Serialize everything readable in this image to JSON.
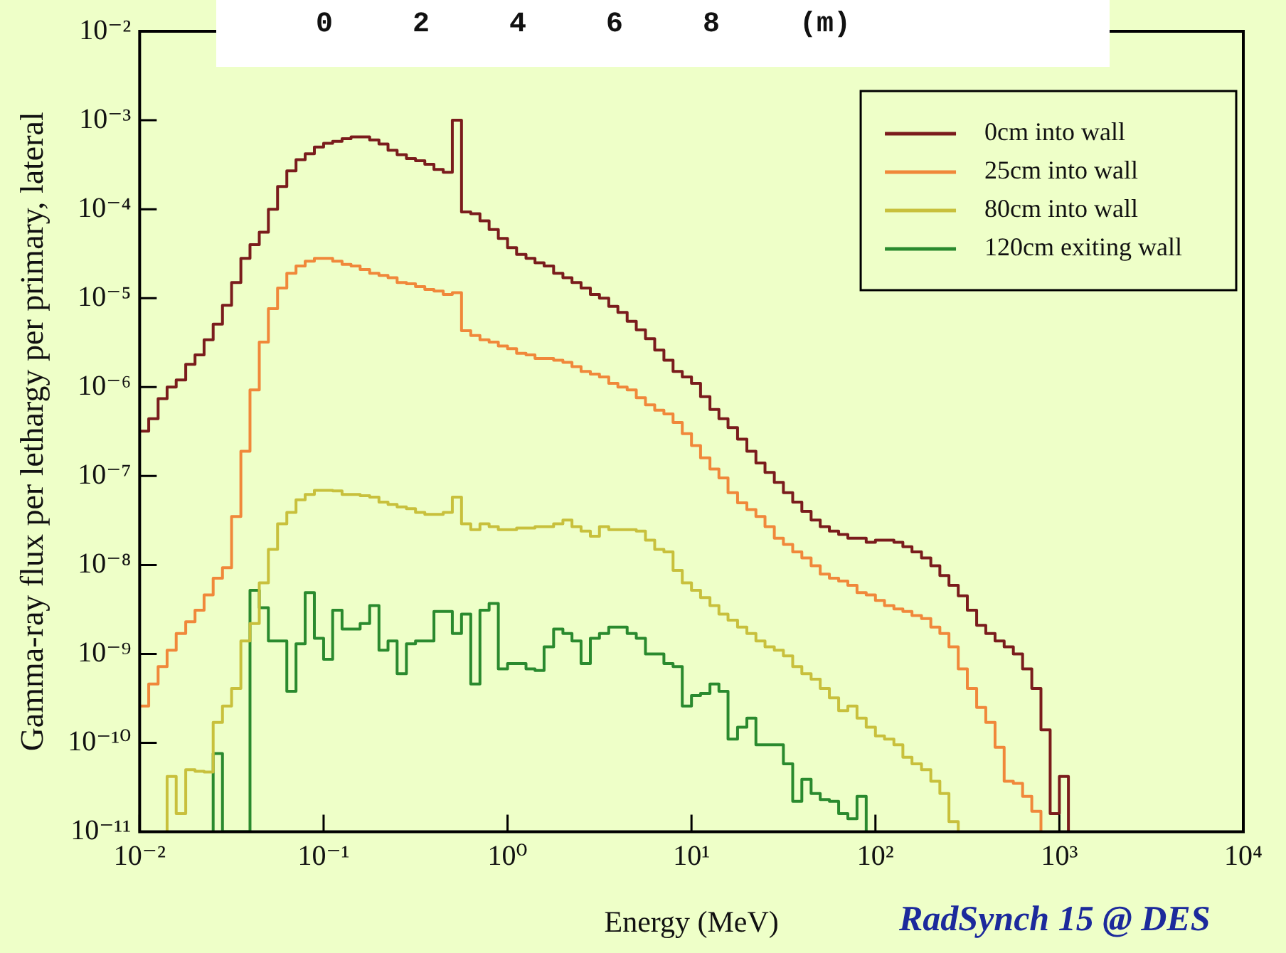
{
  "chart_data": {
    "type": "step",
    "xlabel": "Energy (MeV)",
    "ylabel": "Gamma-ray flux per lethargy per primary, lateral",
    "log": "xy",
    "legend": "top right",
    "xlim": [
      0.01,
      10000
    ],
    "ylim": [
      1e-11,
      0.01
    ],
    "xticks": [
      {
        "value": 0.01,
        "label": "10⁻²"
      },
      {
        "value": 0.1,
        "label": "10⁻¹"
      },
      {
        "value": 1,
        "label": "10⁰"
      },
      {
        "value": 10,
        "label": "10¹"
      },
      {
        "value": 100,
        "label": "10²"
      },
      {
        "value": 1000,
        "label": "10³"
      },
      {
        "value": 10000,
        "label": "10⁴"
      }
    ],
    "yticks": [
      {
        "value": 1e-11,
        "label": "10⁻¹¹"
      },
      {
        "value": 1e-10,
        "label": "10⁻¹⁰"
      },
      {
        "value": 1e-09,
        "label": "10⁻⁹"
      },
      {
        "value": 1e-08,
        "label": "10⁻⁸"
      },
      {
        "value": 1e-07,
        "label": "10⁻⁷"
      },
      {
        "value": 1e-06,
        "label": "10⁻⁶"
      },
      {
        "value": 1e-05,
        "label": "10⁻⁵"
      },
      {
        "value": 0.0001,
        "label": "10⁻⁴"
      },
      {
        "value": 0.001,
        "label": "10⁻³"
      },
      {
        "value": 0.01,
        "label": "10⁻²"
      }
    ],
    "series": [
      {
        "name": "0cm into wall",
        "color": "#7a1c1c",
        "x": [
          0.01,
          0.0112,
          0.0126,
          0.0141,
          0.0158,
          0.0178,
          0.02,
          0.0224,
          0.0251,
          0.0282,
          0.0316,
          0.0355,
          0.0398,
          0.0447,
          0.0501,
          0.0562,
          0.0631,
          0.0708,
          0.0794,
          0.0891,
          0.1,
          0.112,
          0.126,
          0.141,
          0.158,
          0.178,
          0.2,
          0.224,
          0.251,
          0.282,
          0.316,
          0.355,
          0.398,
          0.447,
          0.501,
          0.562,
          0.631,
          0.708,
          0.794,
          0.891,
          1,
          1.12,
          1.26,
          1.41,
          1.58,
          1.78,
          2,
          2.24,
          2.51,
          2.82,
          3.16,
          3.55,
          3.98,
          4.47,
          5.01,
          5.62,
          6.31,
          7.08,
          7.94,
          8.91,
          10,
          11.2,
          12.6,
          14.1,
          15.8,
          17.8,
          20,
          22.4,
          25.1,
          28.2,
          31.6,
          35.5,
          39.8,
          44.7,
          50.1,
          56.2,
          63.1,
          70.8,
          79.4,
          89.1,
          100,
          112,
          126,
          141,
          158,
          178,
          200,
          224,
          251,
          282,
          316,
          355,
          398,
          447,
          501,
          562,
          631,
          708,
          794,
          891,
          1000,
          1120
        ],
        "values": [
          3.2e-07,
          4.4e-07,
          7.4e-07,
          1e-06,
          1.2e-06,
          1.8e-06,
          2.3e-06,
          3.4e-06,
          5.1e-06,
          8.3e-06,
          1.5e-05,
          2.8e-05,
          4e-05,
          5.5e-05,
          0.0001,
          0.00018,
          0.00027,
          0.00036,
          0.00042,
          0.0005,
          0.00055,
          0.00058,
          0.00062,
          0.00065,
          0.00065,
          0.0006,
          0.00054,
          0.00046,
          0.00041,
          0.00037,
          0.00035,
          0.00032,
          0.00028,
          0.00026,
          0.001,
          9.3e-05,
          8.9e-05,
          7.4e-05,
          5.9e-05,
          4.7e-05,
          3.7e-05,
          3.1e-05,
          2.8e-05,
          2.5e-05,
          2.3e-05,
          1.9e-05,
          1.7e-05,
          1.5e-05,
          1.3e-05,
          1.1e-05,
          1e-05,
          8.1e-06,
          6.9e-06,
          5.5e-06,
          4.4e-06,
          3.5e-06,
          2.6e-06,
          2e-06,
          1.5e-06,
          1.3e-06,
          1.1e-06,
          7.8e-07,
          5.6e-07,
          4.4e-07,
          3.5e-07,
          2.6e-07,
          1.9e-07,
          1.4e-07,
          1.1e-07,
          8.5e-08,
          6.5e-08,
          5.1e-08,
          4e-08,
          3.2e-08,
          2.7e-08,
          2.4e-08,
          2.2e-08,
          2e-08,
          2e-08,
          1.8e-08,
          1.9e-08,
          1.9e-08,
          1.8e-08,
          1.6e-08,
          1.4e-08,
          1.2e-08,
          9.8e-09,
          7.6e-09,
          5.9e-09,
          4.5e-09,
          3.1e-09,
          2.1e-09,
          1.7e-09,
          1.4e-09,
          1.2e-09,
          1e-09,
          6.8e-10,
          4.1e-10,
          1.4e-10,
          1.6e-11,
          4.2e-11,
          1e-11
        ]
      },
      {
        "name": "25cm into wall",
        "color": "#f0883a",
        "x": [
          0.01,
          0.0112,
          0.0126,
          0.0141,
          0.0158,
          0.0178,
          0.02,
          0.0224,
          0.0251,
          0.0282,
          0.0316,
          0.0355,
          0.0398,
          0.0447,
          0.0501,
          0.0562,
          0.0631,
          0.0708,
          0.0794,
          0.0891,
          0.1,
          0.112,
          0.126,
          0.141,
          0.158,
          0.178,
          0.2,
          0.224,
          0.251,
          0.282,
          0.316,
          0.355,
          0.398,
          0.447,
          0.501,
          0.562,
          0.631,
          0.708,
          0.794,
          0.891,
          1,
          1.12,
          1.26,
          1.41,
          1.58,
          1.78,
          2,
          2.24,
          2.51,
          2.82,
          3.16,
          3.55,
          3.98,
          4.47,
          5.01,
          5.62,
          6.31,
          7.08,
          7.94,
          8.91,
          10,
          11.2,
          12.6,
          14.1,
          15.8,
          17.8,
          20,
          22.4,
          25.1,
          28.2,
          31.6,
          35.5,
          39.8,
          44.7,
          50.1,
          56.2,
          63.1,
          70.8,
          79.4,
          89.1,
          100,
          112,
          126,
          141,
          158,
          178,
          200,
          224,
          251,
          282,
          316,
          355,
          398,
          447,
          501,
          562,
          631,
          708,
          794
        ],
        "values": [
          2.6e-10,
          4.6e-10,
          7.2e-10,
          1.1e-09,
          1.7e-09,
          2.3e-09,
          3.1e-09,
          4.6e-09,
          7.1e-09,
          9.3e-09,
          3.5e-08,
          1.9e-07,
          9.3e-07,
          3.2e-06,
          7.6e-06,
          1.3e-05,
          1.9e-05,
          2.3e-05,
          2.6e-05,
          2.8e-05,
          2.8e-05,
          2.6e-05,
          2.4e-05,
          2.3e-05,
          2.1e-05,
          1.9e-05,
          1.8e-05,
          1.7e-05,
          1.5e-05,
          1.45e-05,
          1.35e-05,
          1.25e-05,
          1.2e-05,
          1.1e-05,
          1.15e-05,
          4.3e-06,
          3.8e-06,
          3.4e-06,
          3.2e-06,
          2.9e-06,
          2.7e-06,
          2.4e-06,
          2.3e-06,
          2.1e-06,
          2.1e-06,
          2e-06,
          1.9e-06,
          1.7e-06,
          1.5e-06,
          1.4e-06,
          1.3e-06,
          1.1e-06,
          1e-06,
          9.3e-07,
          7.6e-07,
          6.3e-07,
          5.5e-07,
          5e-07,
          4e-07,
          3e-07,
          2.2e-07,
          1.6e-07,
          1.2e-07,
          9.5e-08,
          6.5e-08,
          5e-08,
          4.2e-08,
          3.5e-08,
          2.7e-08,
          2e-08,
          1.7e-08,
          1.4e-08,
          1.2e-08,
          9.8e-09,
          7.9e-09,
          7.1e-09,
          6.6e-09,
          5.9e-09,
          4.9e-09,
          4.6e-09,
          4e-09,
          3.5e-09,
          3.2e-09,
          3e-09,
          2.7e-09,
          2.5e-09,
          2e-09,
          1.7e-09,
          1.2e-09,
          6.8e-10,
          4.1e-10,
          2.5e-10,
          1.7e-10,
          8.9e-11,
          3.7e-11,
          3.5e-11,
          2.5e-11,
          1.7e-11,
          1e-11
        ]
      },
      {
        "name": "80cm into wall",
        "color": "#c8c03c",
        "x": [
          0.0141,
          0.0141,
          0.0158,
          0.0178,
          0.02,
          0.0224,
          0.0251,
          0.0282,
          0.0316,
          0.0355,
          0.0398,
          0.0447,
          0.0501,
          0.0562,
          0.0631,
          0.0708,
          0.0794,
          0.0891,
          0.1,
          0.112,
          0.126,
          0.141,
          0.158,
          0.178,
          0.2,
          0.224,
          0.251,
          0.282,
          0.316,
          0.355,
          0.398,
          0.447,
          0.501,
          0.562,
          0.631,
          0.708,
          0.794,
          0.891,
          1,
          1.12,
          1.26,
          1.41,
          1.58,
          1.78,
          2,
          2.24,
          2.51,
          2.82,
          3.16,
          3.55,
          3.98,
          4.47,
          5.01,
          5.62,
          6.31,
          7.08,
          7.94,
          8.91,
          10,
          11.2,
          12.6,
          14.1,
          15.8,
          17.8,
          20,
          22.4,
          25.1,
          28.2,
          31.6,
          35.5,
          39.8,
          44.7,
          50.1,
          56.2,
          63.1,
          70.8,
          79.4,
          89.1,
          100,
          112,
          126,
          141,
          158,
          178,
          200,
          224,
          251,
          282
        ],
        "values": [
          1e-11,
          4.2e-11,
          1.6e-11,
          5e-11,
          4.8e-11,
          4.7e-11,
          1.7e-10,
          2.6e-10,
          4.1e-10,
          1.4e-09,
          2.2e-09,
          6.3e-09,
          1.5e-08,
          2.9e-08,
          3.9e-08,
          5.4e-08,
          6.2e-08,
          6.9e-08,
          6.9e-08,
          6.8e-08,
          6.2e-08,
          6.2e-08,
          6e-08,
          5.8e-08,
          5.1e-08,
          4.8e-08,
          4.5e-08,
          4.3e-08,
          3.9e-08,
          3.7e-08,
          3.7e-08,
          3.9e-08,
          5.8e-08,
          2.9e-08,
          2.5e-08,
          2.9e-08,
          2.7e-08,
          2.5e-08,
          2.5e-08,
          2.6e-08,
          2.6e-08,
          2.7e-08,
          2.7e-08,
          2.9e-08,
          3.2e-08,
          2.7e-08,
          2.4e-08,
          2.1e-08,
          2.7e-08,
          2.5e-08,
          2.5e-08,
          2.5e-08,
          2.4e-08,
          1.9e-08,
          1.5e-08,
          1.4e-08,
          8.7e-09,
          6.3e-09,
          5.2e-09,
          4.3e-09,
          3.5e-09,
          2.8e-09,
          2.4e-09,
          2e-09,
          1.7e-09,
          1.4e-09,
          1.2e-09,
          1.1e-09,
          9.5e-10,
          7.2e-10,
          6e-10,
          5.2e-10,
          4.1e-10,
          3.2e-10,
          2.3e-10,
          2.6e-10,
          1.9e-10,
          1.5e-10,
          1.2e-10,
          1.1e-10,
          9.5e-11,
          6.9e-11,
          5.8e-11,
          5e-11,
          3.7e-11,
          2.7e-11,
          1.3e-11,
          1e-11
        ]
      },
      {
        "name": "120cm exiting wall",
        "color": "#2a8a2e",
        "x": [
          0.0251,
          0.0251,
          0.0282,
          0.0398,
          0.0447,
          0.0501,
          0.0562,
          0.0631,
          0.0708,
          0.0794,
          0.0891,
          0.1,
          0.112,
          0.126,
          0.141,
          0.158,
          0.178,
          0.2,
          0.224,
          0.251,
          0.282,
          0.316,
          0.355,
          0.398,
          0.447,
          0.501,
          0.562,
          0.631,
          0.708,
          0.794,
          0.891,
          1,
          1.12,
          1.26,
          1.41,
          1.58,
          1.78,
          2,
          2.24,
          2.51,
          2.82,
          3.16,
          3.55,
          3.98,
          4.47,
          5.01,
          5.62,
          6.31,
          7.08,
          7.94,
          8.91,
          10,
          11.2,
          12.6,
          14.1,
          15.8,
          17.8,
          20,
          22.4,
          25.1,
          28.2,
          31.6,
          35.5,
          39.8,
          44.7,
          50.1,
          56.2,
          63.1,
          70.8,
          79.4,
          89.1
        ],
        "values": [
          1e-11,
          7.6e-11,
          1e-11,
          5.2e-09,
          3.3e-09,
          1.4e-09,
          1.4e-09,
          3.8e-10,
          1.3e-09,
          4.9e-09,
          1.5e-09,
          8.7e-10,
          3.1e-09,
          1.9e-09,
          1.9e-09,
          2.2e-09,
          3.5e-09,
          1.1e-09,
          1.4e-09,
          6e-10,
          1.3e-09,
          1.4e-09,
          1.4e-09,
          3e-09,
          3e-09,
          1.7e-09,
          2.8e-09,
          4.6e-10,
          3.1e-09,
          3.7e-09,
          6.8e-10,
          7.8e-10,
          7.8e-10,
          6.8e-10,
          6.5e-10,
          1.2e-09,
          1.9e-09,
          1.7e-09,
          1.4e-09,
          7.8e-10,
          1.5e-09,
          1.7e-09,
          2e-09,
          2e-09,
          1.7e-09,
          1.5e-09,
          1e-09,
          1e-09,
          7.8e-10,
          7.2e-10,
          2.6e-10,
          3.4e-10,
          3.6e-10,
          4.6e-10,
          3.8e-10,
          1.1e-10,
          1.5e-10,
          1.9e-10,
          9.5e-11,
          9.5e-11,
          9.5e-11,
          5.8e-11,
          2.2e-11,
          3.9e-11,
          2.7e-11,
          2.3e-11,
          2.2e-11,
          1.6e-11,
          1.4e-11,
          2.5e-11,
          1e-11
        ]
      }
    ],
    "annotations": [
      "0 2 4 6 8 (m)",
      "RadSynch 15 @ DES"
    ]
  }
}
